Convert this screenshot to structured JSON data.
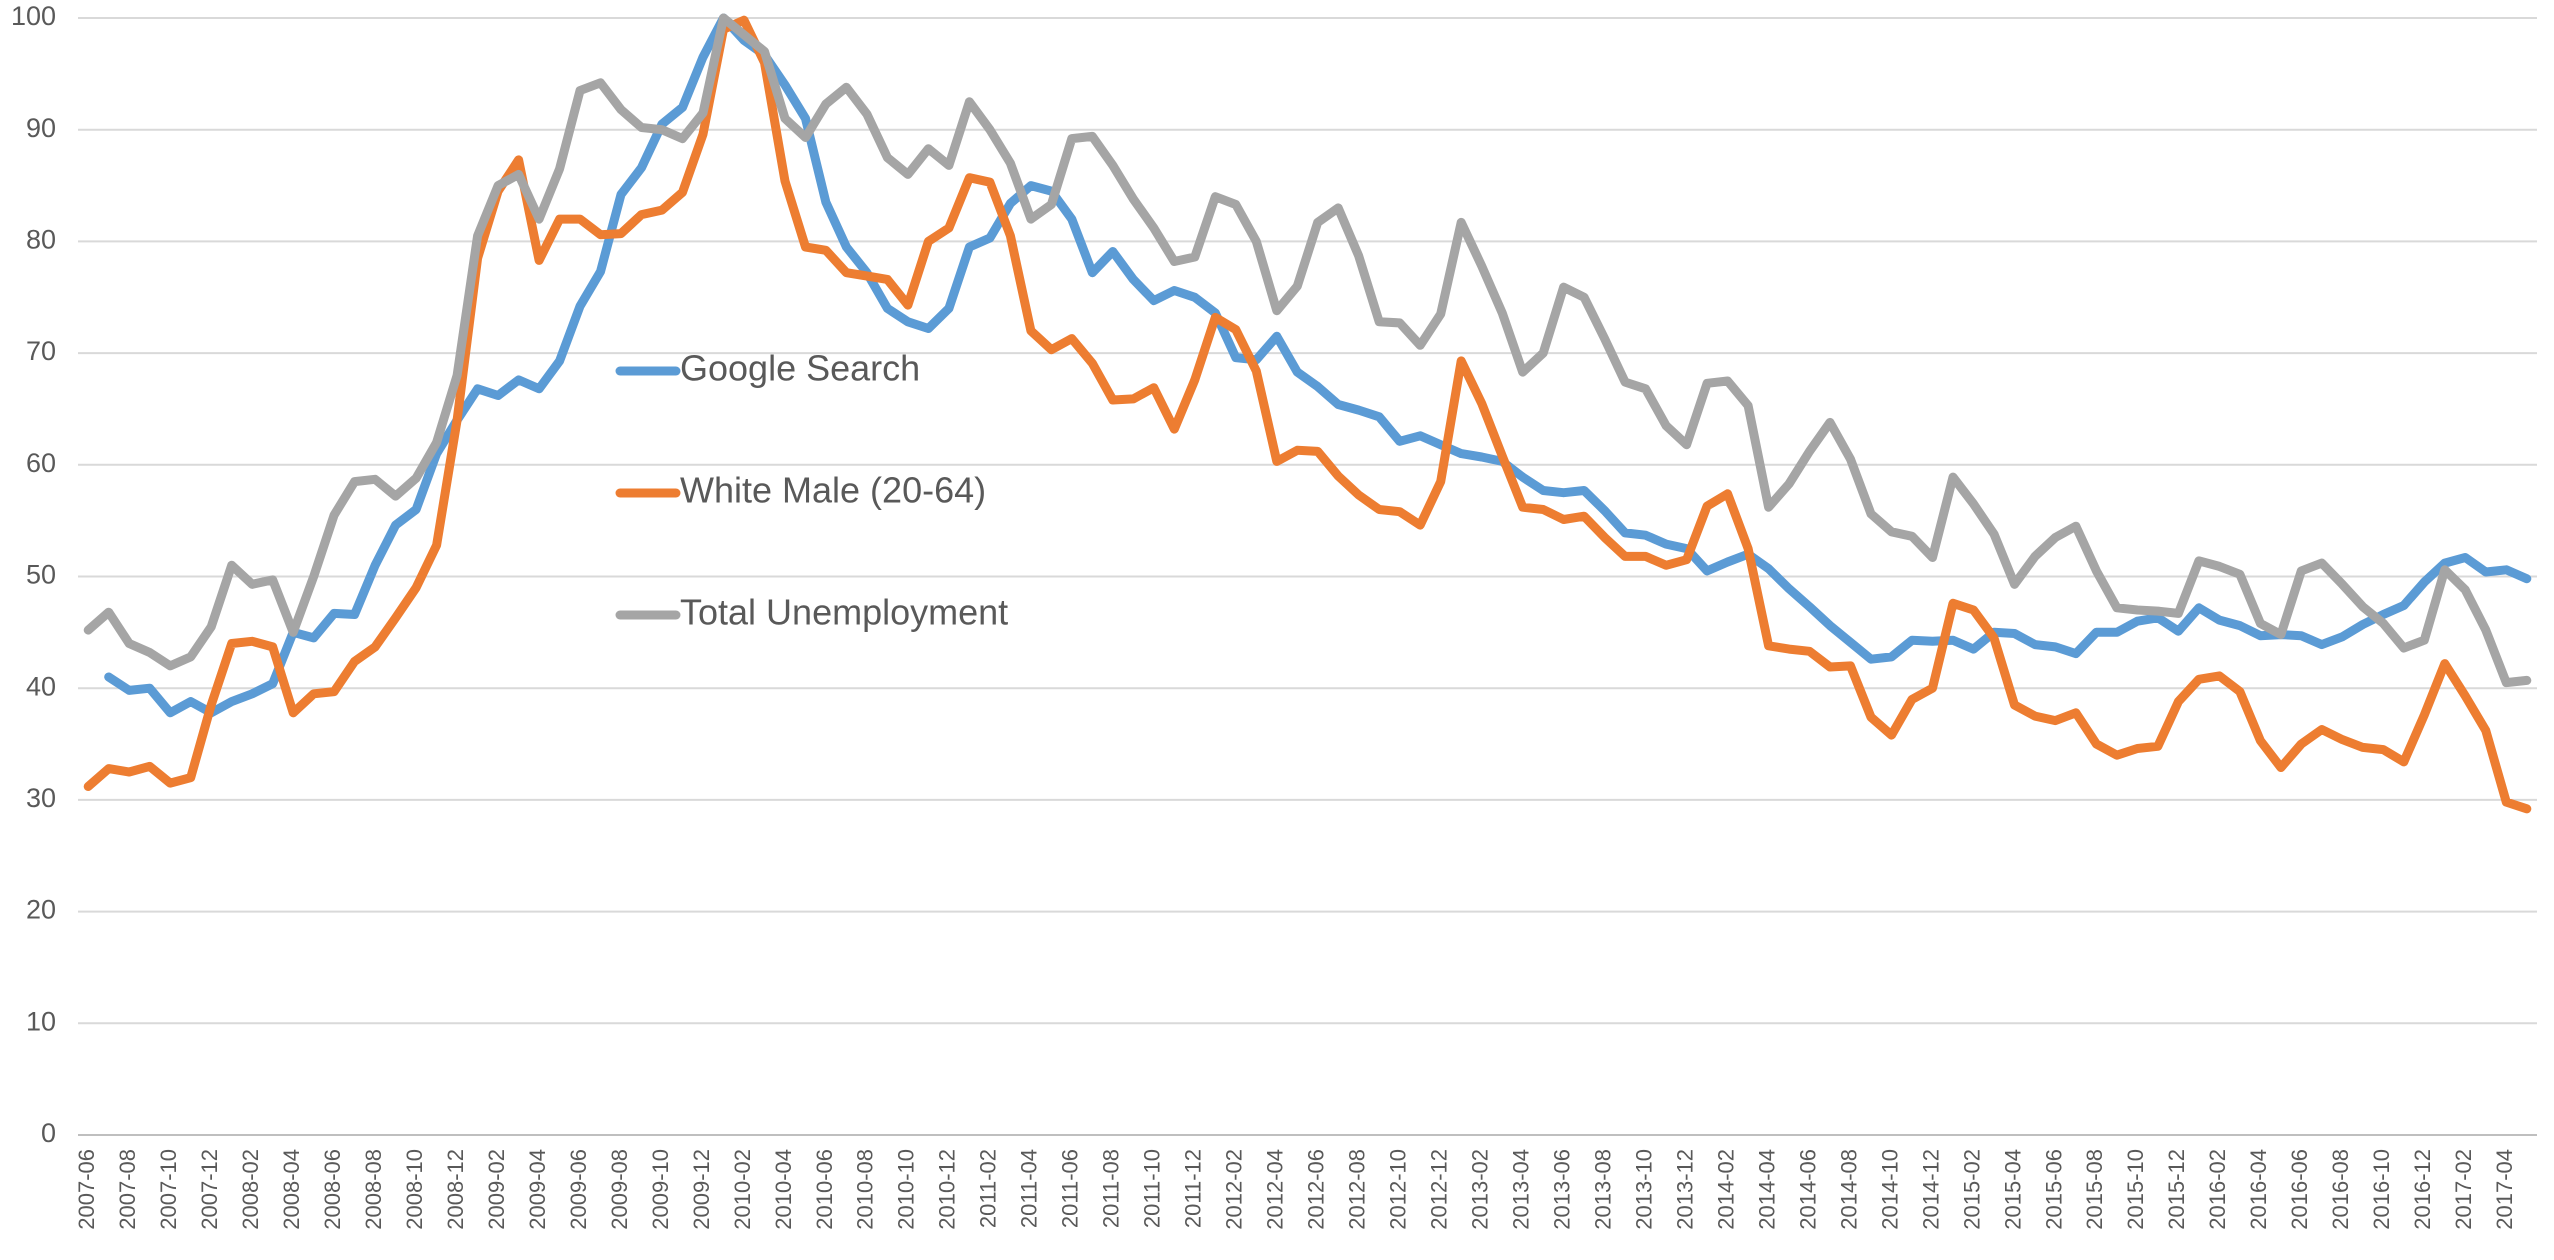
{
  "chart_data": {
    "type": "line",
    "categories": [
      "2007-06",
      null,
      "2007-08",
      null,
      "2007-10",
      null,
      "2007-12",
      null,
      "2008-02",
      null,
      "2008-04",
      null,
      "2008-06",
      null,
      "2008-08",
      null,
      "2008-10",
      null,
      "2008-12",
      null,
      "2009-02",
      null,
      "2009-04",
      null,
      "2009-06",
      null,
      "2009-08",
      null,
      "2009-10",
      null,
      "2009-12",
      null,
      "2010-02",
      null,
      "2010-04",
      null,
      "2010-06",
      null,
      "2010-08",
      null,
      "2010-10",
      null,
      "2010-12",
      null,
      "2011-02",
      null,
      "2011-04",
      null,
      "2011-06",
      null,
      "2011-08",
      null,
      "2011-10",
      null,
      "2011-12",
      null,
      "2012-02",
      null,
      "2012-04",
      null,
      "2012-06",
      null,
      "2012-08",
      null,
      "2012-10",
      null,
      "2012-12",
      null,
      "2013-02",
      null,
      "2013-04",
      null,
      "2013-06",
      null,
      "2013-08",
      null,
      "2013-10",
      null,
      "2013-12",
      null,
      "2014-02",
      null,
      "2014-04",
      null,
      "2014-06",
      null,
      "2014-08",
      null,
      "2014-10",
      null,
      "2014-12",
      null,
      "2015-02",
      null,
      "2015-04",
      null,
      "2015-06",
      null,
      "2015-08",
      null,
      "2015-10",
      null,
      "2015-12",
      null,
      "2016-02",
      null,
      "2016-04",
      null,
      "2016-06",
      null,
      "2016-08",
      null,
      "2016-10",
      null,
      "2016-12",
      null,
      "2017-02",
      null,
      "2017-04",
      null
    ],
    "series": [
      {
        "name": "Google Search",
        "color": "#5b9bd5",
        "values": [
          null,
          41,
          39.8,
          40,
          37.8,
          38.8,
          37.8,
          38.8,
          39.5,
          40.4,
          45,
          44.5,
          46.7,
          46.6,
          51,
          54.6,
          56,
          61,
          64,
          66.8,
          66.2,
          67.6,
          66.8,
          69.3,
          74.2,
          77.3,
          84.2,
          86.6,
          90.5,
          92,
          96.5,
          100,
          98,
          96.7,
          94,
          91,
          83.5,
          79.5,
          77.2,
          74,
          72.8,
          72.2,
          74,
          79.5,
          80.3,
          83.4,
          85,
          84.5,
          82,
          77.2,
          79.1,
          76.6,
          74.7,
          75.6,
          75,
          73.6,
          69.6,
          69.4,
          71.5,
          68.3,
          67,
          65.4,
          64.9,
          64.3,
          62.1,
          62.6,
          61.8,
          61,
          60.7,
          60.3,
          58.9,
          57.7,
          57.5,
          57.7,
          55.9,
          53.9,
          53.7,
          52.9,
          52.5,
          50.5,
          51.3,
          52,
          50.7,
          48.9,
          47.3,
          45.6,
          44.1,
          42.6,
          42.8,
          44.3,
          44.2,
          44.3,
          43.5,
          45,
          44.9,
          43.9,
          43.7,
          43.1,
          45,
          45,
          46,
          46.3,
          45.1,
          47.2,
          46.1,
          45.6,
          44.7,
          44.8,
          44.7,
          43.9,
          44.6,
          45.7,
          46.6,
          47.4,
          49.5,
          51.2,
          51.7,
          50.4,
          50.6,
          49.8
        ]
      },
      {
        "name": "White Male (20-64)",
        "color": "#ed7d31",
        "values": [
          31.2,
          32.8,
          32.5,
          33,
          31.5,
          32,
          38.5,
          44,
          44.2,
          43.7,
          37.8,
          39.5,
          39.7,
          42.4,
          43.7,
          46.3,
          49,
          52.8,
          64,
          78.5,
          84.5,
          87.3,
          78.3,
          82,
          82,
          80.6,
          80.7,
          82.4,
          82.8,
          84.4,
          89.6,
          99,
          99.8,
          96,
          85.4,
          79.5,
          79.2,
          77.2,
          76.9,
          76.6,
          74.3,
          80,
          81.2,
          85.7,
          85.3,
          80.5,
          72,
          70.3,
          71.3,
          69.1,
          65.8,
          65.9,
          66.9,
          63.2,
          67.6,
          73.2,
          72.1,
          68.4,
          60.3,
          61.3,
          61.2,
          59,
          57.3,
          56,
          55.8,
          54.6,
          58.5,
          69.3,
          65.5,
          60.8,
          56.2,
          56,
          55.1,
          55.4,
          53.5,
          51.8,
          51.8,
          51,
          51.5,
          56.3,
          57.4,
          52.5,
          43.8,
          43.5,
          43.3,
          41.9,
          42,
          37.4,
          35.8,
          39,
          40,
          47.6,
          47,
          44.5,
          38.5,
          37.5,
          37.1,
          37.8,
          35,
          34,
          34.6,
          34.8,
          38.8,
          40.8,
          41.1,
          39.7,
          35.3,
          32.9,
          35,
          36.3,
          35.4,
          34.7,
          34.5,
          33.4,
          37.6,
          42.2,
          39.3,
          36.2,
          29.8,
          29.2
        ]
      },
      {
        "name": "Total Unemployment",
        "color": "#a5a5a5",
        "values": [
          45.2,
          46.8,
          44,
          43.2,
          42,
          42.8,
          45.5,
          51,
          49.3,
          49.7,
          45,
          50,
          55.5,
          58.5,
          58.7,
          57.2,
          58.8,
          62,
          68,
          80.5,
          85,
          86,
          82,
          86.5,
          93.5,
          94.2,
          91.8,
          90.2,
          90,
          89.2,
          91.5,
          100,
          98.5,
          97,
          91,
          89.3,
          92.3,
          93.8,
          91.4,
          87.5,
          86,
          88.3,
          86.8,
          92.5,
          90,
          87,
          82,
          83.3,
          89.2,
          89.4,
          86.8,
          83.8,
          81.2,
          78.2,
          78.6,
          84,
          83.3,
          80,
          73.8,
          76,
          81.7,
          83,
          78.7,
          72.8,
          72.7,
          70.7,
          73.5,
          81.7,
          77.8,
          73.6,
          68.3,
          70,
          75.9,
          75,
          71.3,
          67.4,
          66.8,
          63.5,
          61.8,
          67.3,
          67.5,
          65.3,
          56.2,
          58.3,
          61.2,
          63.8,
          60.5,
          55.6,
          54,
          53.6,
          51.7,
          58.9,
          56.5,
          53.8,
          49.3,
          51.8,
          53.5,
          54.5,
          50.5,
          47.2,
          47,
          46.9,
          46.7,
          51.4,
          50.9,
          50.2,
          45.8,
          44.8,
          50.5,
          51.2,
          49.3,
          47.3,
          45.8,
          43.6,
          44.3,
          50.6,
          48.8,
          45.2,
          40.5,
          40.7
        ]
      }
    ],
    "ylim": [
      0,
      100
    ],
    "yticks": [
      0,
      10,
      20,
      30,
      40,
      50,
      60,
      70,
      80,
      90,
      100
    ],
    "grid": true
  }
}
